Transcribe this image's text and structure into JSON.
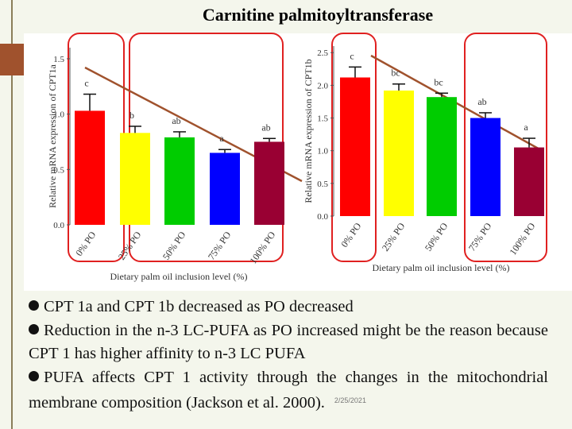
{
  "title": "Carnitine palmitoyltransferase",
  "bullets": [
    "CPT 1a and CPT 1b decreased as PO decreased",
    "Reduction in the n-3 LC-PUFA as PO increased might be the reason because CPT 1 has higher affinity to n-3 LC PUFA",
    "PUFA affects CPT 1 activity through the changes in the mitochondrial membrane composition (Jackson et al. 2000)."
  ],
  "date": "2/25/2021",
  "chart_data": [
    {
      "type": "bar",
      "y_label": "Relative mRNA expression of CPT1a",
      "x_label": "Dietary palm oil inclusion level (%)",
      "categories": [
        "0% PO",
        "25% PO",
        "50% PO",
        "75% PO",
        "100% PO"
      ],
      "values": [
        1.03,
        0.83,
        0.79,
        0.65,
        0.75
      ],
      "errors": [
        0.15,
        0.06,
        0.05,
        0.03,
        0.03
      ],
      "annotations": [
        "c",
        "b",
        "ab",
        "a",
        "ab"
      ],
      "colors": [
        "#ff0000",
        "#ffff00",
        "#00cc00",
        "#0000ff",
        "#990033"
      ],
      "ylim": [
        0,
        1.6
      ],
      "yticks": [
        {
          "value": 0,
          "label": "0.0"
        },
        {
          "value": 0.5,
          "label": "0.5"
        },
        {
          "value": 1,
          "label": "1.0"
        },
        {
          "value": 1.5,
          "label": "1.5"
        }
      ]
    },
    {
      "type": "bar",
      "y_label": "Relative mRNA expression of CPT1b",
      "x_label": "Dietary palm oil inclusion level (%)",
      "categories": [
        "0% PO",
        "25% PO",
        "50% PO",
        "75% PO",
        "100% PO"
      ],
      "values": [
        2.12,
        1.92,
        1.82,
        1.5,
        1.05
      ],
      "errors": [
        0.16,
        0.1,
        0.06,
        0.08,
        0.14
      ],
      "annotations": [
        "c",
        "bc",
        "bc",
        "ab",
        "a"
      ],
      "colors": [
        "#ff0000",
        "#ffff00",
        "#00cc00",
        "#0000ff",
        "#990033"
      ],
      "ylim": [
        0,
        2.6
      ],
      "yticks": [
        {
          "value": 0,
          "label": "0.0"
        },
        {
          "value": 0.5,
          "label": "0.5"
        },
        {
          "value": 1,
          "label": "1.0"
        },
        {
          "value": 1.5,
          "label": "1.5"
        },
        {
          "value": 2,
          "label": "2.0"
        },
        {
          "value": 2.5,
          "label": "2.5"
        }
      ]
    }
  ]
}
